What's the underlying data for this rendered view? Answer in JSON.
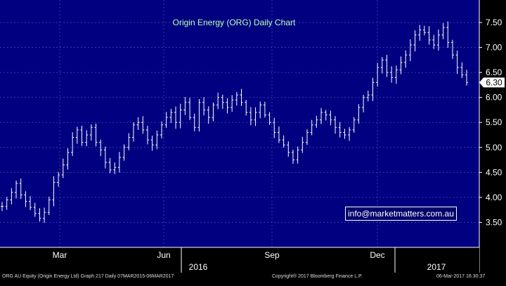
{
  "chart_data": {
    "type": "bar",
    "subtype": "ohlc",
    "title": "Origin Energy (ORG) Daily Chart",
    "xlabel": "",
    "ylabel": "",
    "x_tick_labels": [
      "Mar",
      "Jun",
      "Sep",
      "Dec"
    ],
    "year_labels": [
      "2016",
      "2017"
    ],
    "y_tick_labels": [
      "3.50",
      "4.00",
      "4.50",
      "5.00",
      "5.50",
      "6.00",
      "6.50",
      "7.00",
      "7.50"
    ],
    "y_ticks": [
      3.5,
      4.0,
      4.5,
      5.0,
      5.5,
      6.0,
      6.5,
      7.0,
      7.5
    ],
    "ylim": [
      3.0,
      7.95
    ],
    "grid": true,
    "legend": "none",
    "last_price_label": "6.30",
    "series": [
      {
        "values": [
          3.82,
          3.95,
          4.1,
          4.28,
          4.05,
          3.92,
          3.8,
          3.68,
          3.58,
          3.7,
          3.95,
          4.3,
          4.45,
          4.65,
          4.9,
          5.2,
          5.35,
          5.1,
          5.25,
          5.4,
          5.1,
          4.95,
          4.7,
          4.55,
          4.6,
          4.8,
          5.0,
          5.2,
          5.45,
          5.5,
          5.35,
          5.15,
          5.05,
          5.25,
          5.45,
          5.6,
          5.7,
          5.5,
          5.75,
          5.9,
          5.6,
          5.4,
          5.9,
          5.75,
          5.6,
          5.85,
          6.0,
          5.9,
          5.8,
          5.95,
          6.05,
          5.9,
          5.7,
          5.55,
          5.7,
          5.85,
          5.65,
          5.5,
          5.3,
          5.15,
          5.05,
          4.9,
          4.75,
          4.95,
          5.1,
          5.3,
          5.45,
          5.55,
          5.7,
          5.65,
          5.55,
          5.4,
          5.3,
          5.25,
          5.35,
          5.55,
          5.8,
          6.0,
          6.05,
          6.3,
          6.6,
          6.75,
          6.5,
          6.4,
          6.55,
          6.7,
          6.85,
          7.05,
          7.25,
          7.35,
          7.3,
          7.15,
          7.05,
          7.25,
          7.4,
          7.1,
          6.85,
          6.6,
          6.45,
          6.3
        ]
      }
    ]
  },
  "footer": {
    "left": "ORG AU Equity (Origin Energy Ltd) Graph 217  Daily 07MAR2015-06MAR2017",
    "center": "Copyright® 2017 Bloomberg Finance L.P.",
    "right": "06-Mar-2017 16:30:37"
  },
  "watermark": "info@marketmatters.com.au",
  "colors": {
    "background": "#000080",
    "grid": "#3a3aa8",
    "bars": "#ffffff",
    "title": "#b8ffb8",
    "axis_text": "#ffffff"
  }
}
